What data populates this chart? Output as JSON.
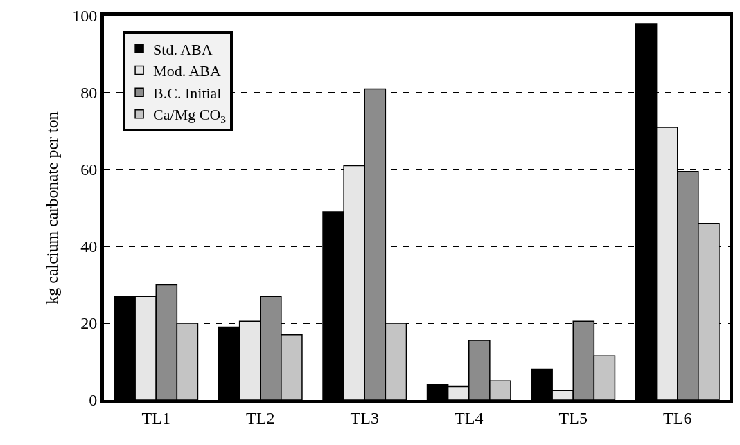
{
  "chart_data": {
    "type": "bar",
    "ylabel": "kg calcium carbonate per ton",
    "categories": [
      "TL1",
      "TL2",
      "TL3",
      "TL4",
      "TL5",
      "TL6"
    ],
    "series": [
      {
        "name": "Std. ABA",
        "color": "#000000",
        "values": [
          27,
          19,
          49,
          4,
          8,
          98
        ]
      },
      {
        "name": "Mod. ABA",
        "color": "#e6e6e6",
        "values": [
          27,
          20.5,
          61,
          3.5,
          2.5,
          71
        ]
      },
      {
        "name": "B.C. Initial",
        "color": "#8c8c8c",
        "values": [
          30,
          27,
          81,
          15.5,
          20.5,
          59.5
        ]
      },
      {
        "name": "Ca/Mg CO$_{3}$",
        "color": "#c4c4c4",
        "values": [
          20,
          17,
          20,
          5,
          11.5,
          46
        ]
      }
    ],
    "ylim": [
      0,
      100
    ],
    "yticks": [
      0,
      20,
      40,
      60,
      80,
      100
    ],
    "grid": "y",
    "legend": "top left"
  }
}
